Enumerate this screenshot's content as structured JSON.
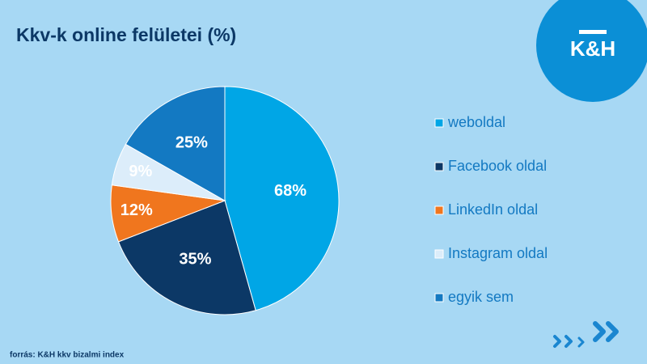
{
  "chart_data": {
    "type": "pie",
    "title": "Kkv-k online felületei (%)",
    "categories": [
      "weboldal",
      "Facebook oldal",
      "LinkedIn oldal",
      "Instagram oldal",
      "egyik sem"
    ],
    "values": [
      68,
      35,
      12,
      9,
      25
    ],
    "value_labels": [
      "68%",
      "35%",
      "12%",
      "9%",
      "25%"
    ],
    "colors": [
      "#00a6e6",
      "#0c3866",
      "#f0761e",
      "#dcedfa",
      "#1379c2"
    ],
    "label_colors": [
      "#ffffff",
      "#ffffff",
      "#ffffff",
      "#ffffff",
      "#ffffff"
    ]
  },
  "source": "forrás: K&H kkv bizalmi index",
  "logo": "K&H"
}
